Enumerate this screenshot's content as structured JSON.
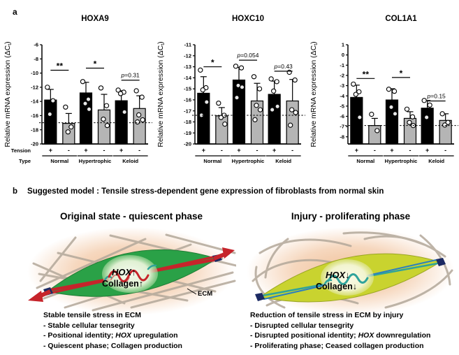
{
  "panel_a": {
    "label": "a"
  },
  "chart_data": [
    {
      "type": "bar",
      "title": "HOXA9",
      "ylabel_parts": {
        "main": "Relative mRNA expression (ΔC",
        "sub": "t",
        "end": ")"
      },
      "ylim": [
        -20,
        -6
      ],
      "yticks": [
        -6,
        -8,
        -10,
        -12,
        -14,
        -16,
        -18,
        -20
      ],
      "baseline": -17.0,
      "row_labels": [
        "Tension",
        "Type"
      ],
      "groups": [
        {
          "name": "Normal",
          "bars": [
            {
              "tension": "+",
              "fill": "black",
              "mean": -13.8,
              "sd_top": -12.3,
              "points": [
                -12.0,
                -13.9,
                -15.8
              ]
            },
            {
              "tension": "-",
              "fill": "gray",
              "mean": -17.1,
              "sd_top": -15.7,
              "points": [
                -14.8,
                -17.6,
                -18.3
              ]
            }
          ]
        },
        {
          "name": "Hypertrophic",
          "bars": [
            {
              "tension": "+",
              "fill": "black",
              "mean": -12.8,
              "sd_top": -11.3,
              "points": [
                -11.2,
                -13.7,
                -14.3,
                -15.1
              ]
            },
            {
              "tension": "-",
              "fill": "gray",
              "mean": -15.2,
              "sd_top": -13.0,
              "points": [
                -12.1,
                -14.6,
                -16.5,
                -17.4
              ]
            }
          ]
        },
        {
          "name": "Keloid",
          "bars": [
            {
              "tension": "+",
              "fill": "black",
              "mean": -13.9,
              "sd_top": -12.5,
              "points": [
                -12.4,
                -12.7,
                -12.9,
                -15.5
              ]
            },
            {
              "tension": "-",
              "fill": "gray",
              "mean": -15.0,
              "sd_top": -13.2,
              "points": [
                -12.5,
                -13.4,
                -15.9,
                -16.6,
                -16.9
              ]
            }
          ]
        }
      ],
      "annotations": [
        {
          "group": 0,
          "label": "**",
          "y": -9.6
        },
        {
          "group": 1,
          "label": "*",
          "y": -9.3
        },
        {
          "group": 2,
          "label": "p=0.31",
          "y": -11.0
        }
      ]
    },
    {
      "type": "bar",
      "title": "HOXC10",
      "ylabel_parts": {
        "main": "Relative mRNA expression (ΔC",
        "sub": "t",
        "end": ")"
      },
      "ylim": [
        -20,
        -11
      ],
      "yticks": [
        -11,
        -12,
        -13,
        -14,
        -15,
        -16,
        -17,
        -18,
        -19,
        -20
      ],
      "baseline": -17.4,
      "row_labels": null,
      "groups": [
        {
          "name": "Normal",
          "bars": [
            {
              "tension": "+",
              "fill": "black",
              "mean": -15.4,
              "sd_top": -13.9,
              "points": [
                -13.3,
                -14.9,
                -15.1,
                -16.2,
                -17.4
              ]
            },
            {
              "tension": "-",
              "fill": "gray",
              "mean": -17.45,
              "sd_top": -16.7,
              "points": [
                -16.3,
                -17.4,
                -17.6,
                -18.2
              ]
            }
          ]
        },
        {
          "name": "Hypertrophic",
          "bars": [
            {
              "tension": "+",
              "fill": "black",
              "mean": -14.2,
              "sd_top": -13.05,
              "points": [
                -12.95,
                -13.1,
                -14.7,
                -14.85,
                -15.8
              ]
            },
            {
              "tension": "-",
              "fill": "gray",
              "mean": -16.1,
              "sd_top": -14.5,
              "points": [
                -13.9,
                -15.0,
                -16.5,
                -16.9,
                -17.8
              ]
            }
          ]
        },
        {
          "name": "Keloid",
          "bars": [
            {
              "tension": "+",
              "fill": "black",
              "mean": -15.5,
              "sd_top": -14.3,
              "points": [
                -14.1,
                -14.35,
                -15.2,
                -16.6,
                -16.9
              ]
            },
            {
              "tension": "-",
              "fill": "gray",
              "mean": -16.1,
              "sd_top": -14.15,
              "points": [
                -13.5,
                -14.2,
                -16.9,
                -17.15,
                -18.3
              ]
            }
          ]
        }
      ],
      "annotations": [
        {
          "group": 0,
          "label": "*",
          "y": -13.0
        },
        {
          "group": 1,
          "label": "p=0.054",
          "y": -12.4
        },
        {
          "group": 2,
          "label": "p=0.43",
          "y": -13.4
        }
      ]
    },
    {
      "type": "bar",
      "title": "COL1A1",
      "ylabel_parts": {
        "main": "Relative mRNA expression (ΔC",
        "sub": "t",
        "end": ")"
      },
      "ylim": [
        -8.7,
        1
      ],
      "yticks": [
        1,
        0,
        -1,
        -2,
        -3,
        -4,
        -5,
        -6,
        -7,
        -8
      ],
      "baseline": -6.9,
      "row_labels": null,
      "groups": [
        {
          "name": "Normal",
          "bars": [
            {
              "tension": "+",
              "fill": "black",
              "mean": -4.15,
              "sd_top": -2.95,
              "points": [
                -2.85,
                -3.6,
                -3.85,
                -6.1
              ]
            },
            {
              "tension": "-",
              "fill": "gray",
              "mean": -6.9,
              "sd_top": -6.2,
              "points": [
                -5.8,
                -7.4
              ]
            }
          ]
        },
        {
          "name": "Hypertrophic",
          "bars": [
            {
              "tension": "+",
              "fill": "black",
              "mean": -4.4,
              "sd_top": -3.3,
              "points": [
                -3.35,
                -3.55,
                -5.1,
                -5.75
              ]
            },
            {
              "tension": "-",
              "fill": "gray",
              "mean": -6.2,
              "sd_top": -5.55,
              "points": [
                -5.3,
                -6.05,
                -6.6,
                -6.9
              ]
            }
          ]
        },
        {
          "name": "Keloid",
          "bars": [
            {
              "tension": "+",
              "fill": "black",
              "mean": -5.2,
              "sd_top": -4.45,
              "points": [
                -4.45,
                -4.9,
                -6.1
              ]
            },
            {
              "tension": "-",
              "fill": "gray",
              "mean": -6.4,
              "sd_top": -5.75,
              "points": [
                -5.75,
                -6.6,
                -6.85
              ]
            }
          ]
        }
      ],
      "annotations": [
        {
          "group": 0,
          "label": "**",
          "y": -2.3
        },
        {
          "group": 1,
          "label": "*",
          "y": -2.2
        },
        {
          "group": 2,
          "label": "p=0.15",
          "y": -4.5
        }
      ]
    }
  ],
  "panel_b": {
    "label": "b",
    "heading": "Suggested model : Tensile stress-dependent gene expression of fibroblasts from normal skin",
    "left": {
      "title": "Original state - quiescent phase",
      "cell_label_gene": "HOX",
      "cell_label_gene_arrow": "↑",
      "cell_label_collagen": "Collagen↑",
      "ecm_label": "ECM",
      "caption_title": "Stable tensile stress in ECM",
      "bullets": [
        {
          "pre": "- Stable cellular tensegrity",
          "it": "",
          "post": ""
        },
        {
          "pre": "- Positional identity; ",
          "it": "HOX",
          "post": " upregulation"
        },
        {
          "pre": "- Quiescent phase; Collagen production",
          "it": "",
          "post": ""
        }
      ]
    },
    "right": {
      "title": "Injury - proliferating phase",
      "cell_label_gene": "HOX",
      "cell_label_gene_arrow": "↓",
      "cell_label_collagen": "Collagen↓",
      "caption_title": "Reduction of tensile stress in ECM by injury",
      "bullets": [
        {
          "pre": "- Disrupted cellular tensegrity",
          "it": "",
          "post": ""
        },
        {
          "pre": "- Disrupted positional identity; ",
          "it": "HOX",
          "post": " downregulation"
        },
        {
          "pre": "- Proliferating phase; Ceased collagen production",
          "it": "",
          "post": ""
        }
      ]
    }
  },
  "colors": {
    "bar_positive": "#000000",
    "bar_negative": "#b5b5b5",
    "axis": "#000000",
    "arrow_red": "#c6242b",
    "cell_green": "#2aa147",
    "cell_green_edge": "#1f7c35",
    "cell_yellow": "#c9d32f",
    "cell_yellow_edge": "#9aa623",
    "teal": "#2fa39b",
    "blue_line": "#2b7fc0",
    "fiber": "#b3a89a",
    "glow": "#f0bd93",
    "navy": "#1c2a63"
  }
}
